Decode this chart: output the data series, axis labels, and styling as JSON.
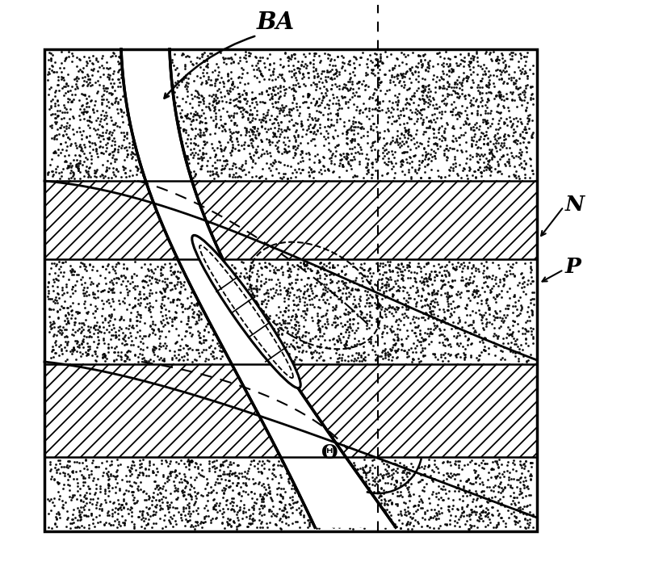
{
  "title": "BA",
  "label_N": "N",
  "label_P": "P",
  "label_theta": "Θ",
  "background_color": "#ffffff",
  "line_color": "#000000",
  "fig_width": 8.0,
  "fig_height": 6.96,
  "dpi": 100
}
